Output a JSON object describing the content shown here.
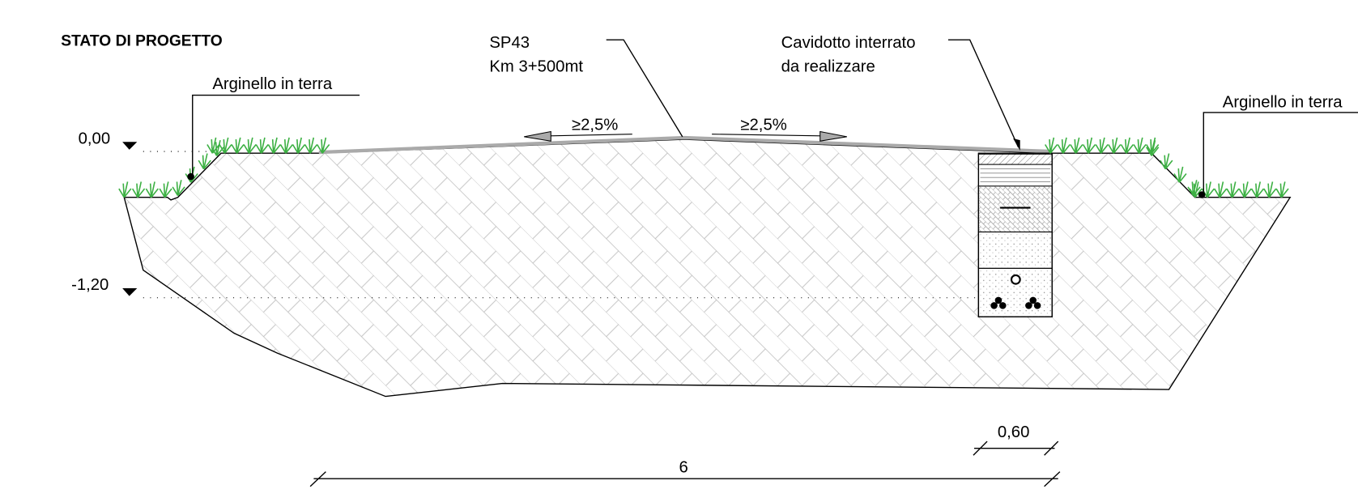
{
  "title": "STATO DI PROGETTO",
  "levels": [
    "0,00",
    "-1,20"
  ],
  "labels": {
    "road": [
      "SP43",
      "Km 3+500mt"
    ],
    "duct": [
      "Cavidotto interrato",
      "da realizzare"
    ],
    "embankment_left": "Arginello in terra",
    "embankment_right": "Arginello in terra"
  },
  "slopes": [
    "≥2,5%",
    "≥2,5%"
  ],
  "dimensions": {
    "trench_width": "0,60",
    "road_width": "6"
  }
}
